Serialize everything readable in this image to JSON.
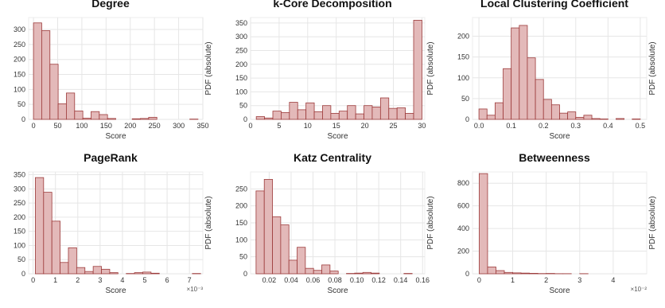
{
  "colors": {
    "bar_fill": "#e3b9b9",
    "bar_stroke": "#9c3a3a",
    "grid": "#e6e6e6",
    "text": "#333333"
  },
  "chart_data": [
    {
      "type": "bar",
      "title": "Degree",
      "xlabel": "Score",
      "ylabel": "PDF (absolute)",
      "xlim": [
        -10,
        350
      ],
      "ylim": [
        0,
        340
      ],
      "xticks": [
        0,
        50,
        100,
        150,
        200,
        250,
        300,
        350
      ],
      "xtick_labels": [
        "0",
        "50",
        "100",
        "150",
        "200",
        "250",
        "300",
        "350"
      ],
      "yticks": [
        0,
        50,
        100,
        150,
        200,
        250,
        300
      ],
      "bin_edges": [
        0,
        17,
        34,
        51,
        68,
        85,
        102,
        119,
        136,
        153,
        170,
        187,
        204,
        221,
        238,
        255,
        272,
        289,
        306,
        323,
        340
      ],
      "values": [
        322,
        296,
        184,
        52,
        88,
        28,
        4,
        26,
        16,
        3,
        0,
        0,
        2,
        3,
        7,
        0,
        0,
        0,
        0,
        1
      ],
      "multiplier": ""
    },
    {
      "type": "bar",
      "title": "k-Core Decomposition",
      "xlabel": "Score",
      "ylabel": "PDF (absolute)",
      "xlim": [
        0,
        30.5
      ],
      "ylim": [
        0,
        370
      ],
      "xticks": [
        0,
        5,
        10,
        15,
        20,
        25,
        30
      ],
      "xtick_labels": [
        "0",
        "5",
        "10",
        "15",
        "20",
        "25",
        "30"
      ],
      "yticks": [
        0,
        50,
        100,
        150,
        200,
        250,
        300,
        350
      ],
      "bin_edges": [
        1,
        2.45,
        3.9,
        5.35,
        6.8,
        8.25,
        9.7,
        11.15,
        12.6,
        14.05,
        15.5,
        16.95,
        18.4,
        19.85,
        21.3,
        22.75,
        24.2,
        25.65,
        27.1,
        28.55,
        30
      ],
      "values": [
        10,
        5,
        30,
        25,
        62,
        35,
        60,
        28,
        50,
        22,
        30,
        50,
        20,
        50,
        45,
        78,
        40,
        42,
        22,
        360
      ],
      "multiplier": ""
    },
    {
      "type": "bar",
      "title": "Local Clustering Coefficient",
      "xlabel": "Score",
      "ylabel": "PDF (absolute)",
      "xlim": [
        -0.02,
        0.52
      ],
      "ylim": [
        0,
        245
      ],
      "xticks": [
        0.0,
        0.1,
        0.2,
        0.3,
        0.4,
        0.5
      ],
      "xtick_labels": [
        "0.0",
        "0.1",
        "0.2",
        "0.3",
        "0.4",
        "0.5"
      ],
      "yticks": [
        0,
        50,
        100,
        150,
        200
      ],
      "bin_edges": [
        0,
        0.025,
        0.05,
        0.075,
        0.1,
        0.125,
        0.15,
        0.175,
        0.2,
        0.225,
        0.25,
        0.275,
        0.3,
        0.325,
        0.35,
        0.375,
        0.4,
        0.425,
        0.45,
        0.475,
        0.5
      ],
      "values": [
        25,
        10,
        40,
        122,
        220,
        226,
        148,
        96,
        48,
        35,
        15,
        18,
        5,
        10,
        2,
        1,
        0,
        2,
        0,
        1
      ],
      "multiplier": ""
    },
    {
      "type": "bar",
      "title": "PageRank",
      "xlabel": "Score",
      "ylabel": "PDF (absolute)",
      "xlim": [
        -0.2,
        7.6
      ],
      "ylim": [
        0,
        360
      ],
      "xticks": [
        0,
        1,
        2,
        3,
        4,
        5,
        6,
        7
      ],
      "xtick_labels": [
        "0",
        "1",
        "2",
        "3",
        "4",
        "5",
        "6",
        "7"
      ],
      "yticks": [
        0,
        50,
        100,
        150,
        200,
        250,
        300,
        350
      ],
      "bin_edges": [
        0.1,
        0.47,
        0.84,
        1.21,
        1.58,
        1.95,
        2.32,
        2.69,
        3.06,
        3.43,
        3.8,
        4.17,
        4.54,
        4.91,
        5.28,
        5.65,
        6.02,
        6.39,
        6.76,
        7.13,
        7.5
      ],
      "values": [
        340,
        288,
        186,
        40,
        92,
        22,
        8,
        26,
        16,
        4,
        0,
        1,
        4,
        6,
        2,
        0,
        0,
        0,
        0,
        1
      ],
      "multiplier": "×10⁻³"
    },
    {
      "type": "bar",
      "title": "Katz Centrality",
      "xlabel": "Score",
      "ylabel": "PDF (absolute)",
      "xlim": [
        0.003,
        0.162
      ],
      "ylim": [
        0,
        300
      ],
      "xticks": [
        0.02,
        0.04,
        0.06,
        0.08,
        0.1,
        0.12,
        0.14,
        0.16
      ],
      "xtick_labels": [
        "0.02",
        "0.04",
        "0.06",
        "0.08",
        "0.10",
        "0.12",
        "0.14",
        "0.16"
      ],
      "yticks": [
        0,
        50,
        100,
        150,
        200,
        250
      ],
      "bin_edges": [
        0.008,
        0.0155,
        0.023,
        0.0305,
        0.038,
        0.0455,
        0.053,
        0.0605,
        0.068,
        0.0755,
        0.083,
        0.0905,
        0.098,
        0.1055,
        0.113,
        0.1205,
        0.128,
        0.1355,
        0.143,
        0.1505,
        0.158
      ],
      "values": [
        244,
        278,
        168,
        144,
        40,
        78,
        16,
        10,
        26,
        8,
        0,
        1,
        2,
        4,
        2,
        0,
        0,
        0,
        1,
        0
      ],
      "multiplier": ""
    },
    {
      "type": "bar",
      "title": "Betweenness",
      "xlabel": "Score",
      "ylabel": "PDF (absolute)",
      "xlim": [
        -0.2,
        5
      ],
      "ylim": [
        0,
        900
      ],
      "xticks": [
        0,
        1,
        2,
        3,
        4
      ],
      "xtick_labels": [
        "0",
        "1",
        "2",
        "3",
        "4"
      ],
      "yticks": [
        0,
        200,
        400,
        600,
        800
      ],
      "bin_edges": [
        0,
        0.25,
        0.5,
        0.75,
        1.0,
        1.25,
        1.5,
        1.75,
        2.0,
        2.25,
        2.5,
        2.75,
        3.0,
        3.25,
        3.5,
        3.75,
        4.0,
        4.25,
        4.5,
        4.75,
        5.0
      ],
      "values": [
        885,
        60,
        28,
        12,
        8,
        6,
        4,
        2,
        3,
        1,
        1,
        0,
        1,
        0,
        0,
        0,
        0,
        0,
        0,
        0
      ],
      "multiplier": "×10⁻²"
    }
  ]
}
